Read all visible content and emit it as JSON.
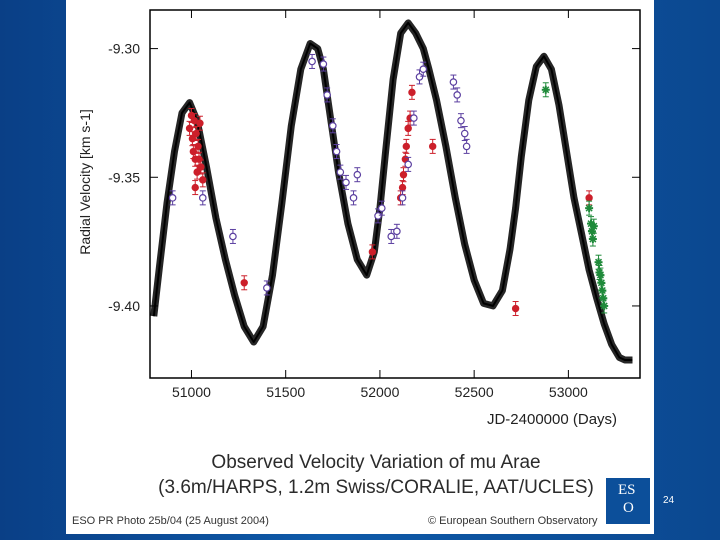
{
  "slide": {
    "number": "24"
  },
  "caption": {
    "line1": "Observed Velocity Variation of mu Arae",
    "line2": "(3.6m/HARPS, 1.2m Swiss/CORALIE, AAT/UCLES)"
  },
  "credits": {
    "left": "ESO PR Photo 25b/04 (25 August 2004)",
    "right": "© European Southern Observatory"
  },
  "logo": {
    "text_top": "ES",
    "text_bottom": "O"
  },
  "colors": {
    "slide_background": "#0b4890",
    "harps": "#cc1f2a",
    "coralie": "#5b3fa0",
    "ucles": "#1f8a3a",
    "model": "#000000"
  },
  "chart_data": {
    "type": "scatter",
    "xlabel": "JD-2400000 (Days)",
    "ylabel": "Radial Velocity [km s-1]",
    "xlim": [
      50780,
      53380
    ],
    "ylim": [
      -9.428,
      -9.285
    ],
    "xticks": [
      "51000",
      "51500",
      "52000",
      "52500",
      "53000"
    ],
    "xtick_values": [
      51000,
      51500,
      52000,
      52500,
      53000
    ],
    "yticks": [
      "-9.30",
      "-9.35",
      "-9.40"
    ],
    "ytick_values": [
      -9.3,
      -9.35,
      -9.4
    ],
    "grid": false,
    "model_curve": {
      "x": [
        50800,
        50830,
        50870,
        50910,
        50950,
        50990,
        51030,
        51080,
        51130,
        51180,
        51230,
        51280,
        51330,
        51380,
        51430,
        51480,
        51530,
        51580,
        51630,
        51670,
        51700,
        51740,
        51780,
        51830,
        51880,
        51930,
        51970,
        52000,
        52030,
        52070,
        52110,
        52150,
        52190,
        52230,
        52260,
        52300,
        52350,
        52400,
        52450,
        52500,
        52550,
        52600,
        52650,
        52690,
        52720,
        52750,
        52790,
        52830,
        52870,
        52910,
        52950,
        52990,
        53030,
        53070,
        53110,
        53150,
        53190,
        53230,
        53270,
        53300,
        53340
      ],
      "y": [
        -9.404,
        -9.385,
        -9.36,
        -9.34,
        -9.325,
        -9.321,
        -9.328,
        -9.346,
        -9.366,
        -9.382,
        -9.396,
        -9.408,
        -9.414,
        -9.408,
        -9.388,
        -9.36,
        -9.33,
        -9.308,
        -9.298,
        -9.3,
        -9.308,
        -9.328,
        -9.348,
        -9.368,
        -9.382,
        -9.388,
        -9.379,
        -9.362,
        -9.34,
        -9.312,
        -9.294,
        -9.29,
        -9.294,
        -9.3,
        -9.308,
        -9.32,
        -9.338,
        -9.358,
        -9.376,
        -9.39,
        -9.399,
        -9.4,
        -9.394,
        -9.378,
        -9.362,
        -9.342,
        -9.32,
        -9.307,
        -9.303,
        -9.308,
        -9.322,
        -9.34,
        -9.358,
        -9.372,
        -9.386,
        -9.397,
        -9.407,
        -9.415,
        -9.42,
        -9.421,
        -9.421
      ]
    },
    "series": [
      {
        "name": "HARPS",
        "marker": "filled-circle",
        "points": [
          [
            50990,
            -9.331
          ],
          [
            51000,
            -9.326
          ],
          [
            51005,
            -9.335
          ],
          [
            51010,
            -9.34
          ],
          [
            51015,
            -9.328
          ],
          [
            51020,
            -9.343
          ],
          [
            51025,
            -9.333
          ],
          [
            51030,
            -9.348
          ],
          [
            51035,
            -9.338
          ],
          [
            51040,
            -9.343
          ],
          [
            51045,
            -9.329
          ],
          [
            51050,
            -9.346
          ],
          [
            51060,
            -9.351
          ],
          [
            51020,
            -9.354
          ],
          [
            51280,
            -9.391
          ],
          [
            51960,
            -9.379
          ],
          [
            52110,
            -9.358
          ],
          [
            52120,
            -9.354
          ],
          [
            52125,
            -9.349
          ],
          [
            52135,
            -9.343
          ],
          [
            52140,
            -9.338
          ],
          [
            52150,
            -9.331
          ],
          [
            52160,
            -9.327
          ],
          [
            52170,
            -9.317
          ],
          [
            52280,
            -9.338
          ],
          [
            52720,
            -9.401
          ],
          [
            53110,
            -9.358
          ]
        ]
      },
      {
        "name": "CORALIE",
        "marker": "open-circle",
        "points": [
          [
            50900,
            -9.358
          ],
          [
            51060,
            -9.358
          ],
          [
            51220,
            -9.373
          ],
          [
            51400,
            -9.393
          ],
          [
            51640,
            -9.305
          ],
          [
            51700,
            -9.306
          ],
          [
            51720,
            -9.318
          ],
          [
            51750,
            -9.33
          ],
          [
            51770,
            -9.34
          ],
          [
            51790,
            -9.348
          ],
          [
            51820,
            -9.352
          ],
          [
            51860,
            -9.358
          ],
          [
            51880,
            -9.349
          ],
          [
            51990,
            -9.365
          ],
          [
            52010,
            -9.362
          ],
          [
            52060,
            -9.373
          ],
          [
            52090,
            -9.371
          ],
          [
            52120,
            -9.358
          ],
          [
            52150,
            -9.345
          ],
          [
            52180,
            -9.327
          ],
          [
            52210,
            -9.311
          ],
          [
            52230,
            -9.308
          ],
          [
            52390,
            -9.313
          ],
          [
            52410,
            -9.318
          ],
          [
            52430,
            -9.328
          ],
          [
            52450,
            -9.333
          ],
          [
            52460,
            -9.338
          ]
        ]
      },
      {
        "name": "UCLES",
        "marker": "asterisk",
        "points": [
          [
            52880,
            -9.316
          ],
          [
            53110,
            -9.362
          ],
          [
            53120,
            -9.368
          ],
          [
            53125,
            -9.371
          ],
          [
            53130,
            -9.374
          ],
          [
            53135,
            -9.369
          ],
          [
            53160,
            -9.383
          ],
          [
            53165,
            -9.387
          ],
          [
            53170,
            -9.388
          ],
          [
            53175,
            -9.391
          ],
          [
            53180,
            -9.394
          ],
          [
            53185,
            -9.397
          ],
          [
            53190,
            -9.4
          ]
        ]
      }
    ]
  }
}
